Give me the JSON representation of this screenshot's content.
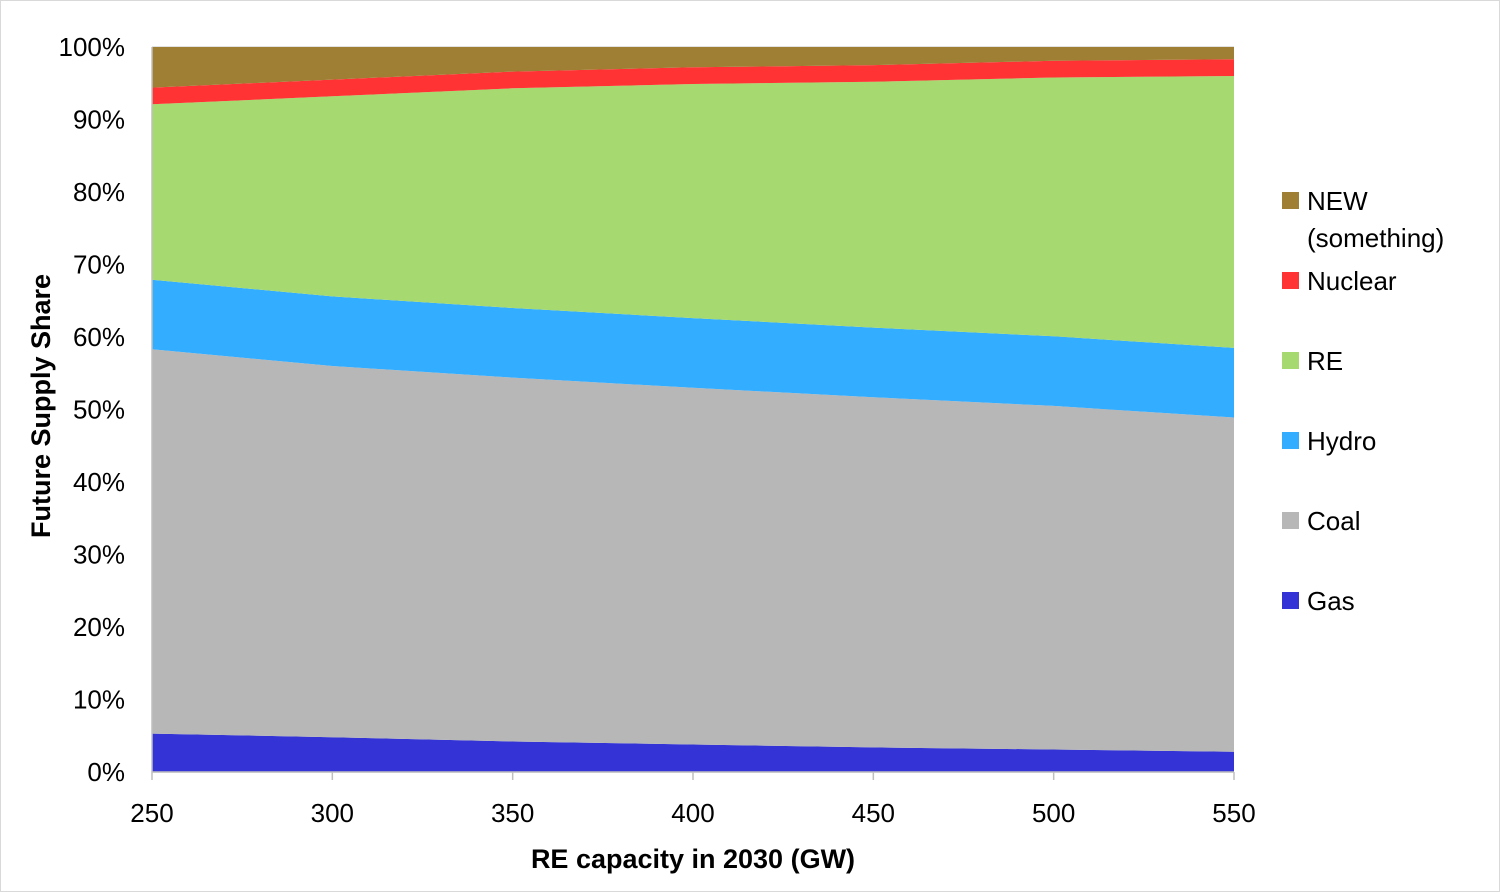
{
  "chart_data": {
    "type": "area",
    "stacked": true,
    "percent": true,
    "title": "",
    "xlabel": "RE capacity in 2030 (GW)",
    "ylabel": "Future Supply Share",
    "x": [
      250,
      300,
      350,
      400,
      450,
      500,
      550
    ],
    "x_ticks": [
      "250",
      "300",
      "350",
      "400",
      "450",
      "500",
      "550"
    ],
    "xlim": [
      250,
      550
    ],
    "ylim": [
      0,
      100
    ],
    "y_ticks": [
      "0%",
      "10%",
      "20%",
      "30%",
      "40%",
      "50%",
      "60%",
      "70%",
      "80%",
      "90%",
      "100%"
    ],
    "gridlines": true,
    "legend_position": "right",
    "series": [
      {
        "name": "Gas",
        "color": "#3333d6",
        "values": [
          5.3,
          4.8,
          4.2,
          3.8,
          3.4,
          3.1,
          2.8
        ]
      },
      {
        "name": "Coal",
        "color": "#b7b7b7",
        "values": [
          53.0,
          51.2,
          50.2,
          49.2,
          48.3,
          47.4,
          46.1
        ]
      },
      {
        "name": "Hydro",
        "color": "#33adff",
        "values": [
          9.6,
          9.6,
          9.6,
          9.6,
          9.6,
          9.6,
          9.6
        ]
      },
      {
        "name": "RE",
        "color": "#a6d96f",
        "values": [
          24.2,
          27.6,
          30.3,
          32.3,
          33.9,
          35.7,
          37.5
        ]
      },
      {
        "name": "Nuclear",
        "color": "#ff3333",
        "values": [
          2.3,
          2.3,
          2.3,
          2.3,
          2.3,
          2.3,
          2.3
        ]
      },
      {
        "name": "NEW (something)",
        "color": "#9e7f33",
        "values": [
          5.6,
          4.5,
          3.4,
          2.8,
          2.5,
          1.9,
          1.7
        ]
      }
    ],
    "legend": [
      {
        "lines": [
          "NEW",
          "(something)"
        ],
        "color": "#9e7f33"
      },
      {
        "lines": [
          "Nuclear"
        ],
        "color": "#ff3333"
      },
      {
        "lines": [
          "RE"
        ],
        "color": "#a6d96f"
      },
      {
        "lines": [
          "Hydro"
        ],
        "color": "#33adff"
      },
      {
        "lines": [
          "Coal"
        ],
        "color": "#b7b7b7"
      },
      {
        "lines": [
          "Gas"
        ],
        "color": "#3333d6"
      }
    ],
    "colors": {
      "grid": "#d9d9d9",
      "axis": "#bfbfbf"
    }
  }
}
